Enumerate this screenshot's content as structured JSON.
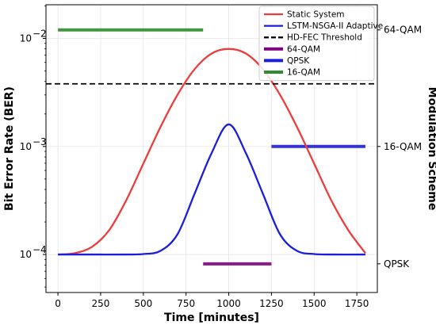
{
  "chart_data": {
    "type": "line",
    "xlabel": "Time [minutes]",
    "ylabel": "Bit Error Rate (BER)",
    "y2label": "Modulation Scheme",
    "x_ticks": [
      0,
      250,
      500,
      750,
      1000,
      1250,
      1500,
      1750
    ],
    "xlim": [
      -70,
      1870
    ],
    "y_scale": "log",
    "y_ticks": [
      {
        "value": 0.0001,
        "base": "10",
        "exp": "−4"
      },
      {
        "value": 0.001,
        "base": "10",
        "exp": "−3"
      },
      {
        "value": 0.01,
        "base": "10",
        "exp": "−2"
      }
    ],
    "ylim": [
      4.45e-05,
      0.0205
    ],
    "y2_ticks": [
      {
        "label": "QPSK",
        "ber": 8.2e-05
      },
      {
        "label": "16-QAM",
        "ber": 0.001
      },
      {
        "label": "64-QAM",
        "ber": 0.012
      }
    ],
    "grid": true,
    "legend_position": "top-right",
    "series": [
      {
        "name": "Static System",
        "color": "#ee3b3b",
        "style": "solid",
        "x": [
          0,
          100,
          200,
          300,
          400,
          500,
          600,
          700,
          800,
          900,
          1000,
          1100,
          1200,
          1300,
          1400,
          1500,
          1600,
          1700,
          1800
        ],
        "y": [
          0.0001,
          0.000103,
          0.000118,
          0.000168,
          0.000318,
          0.000694,
          0.00151,
          0.00301,
          0.00519,
          0.00725,
          0.008,
          0.00725,
          0.00519,
          0.00301,
          0.00151,
          0.000694,
          0.000318,
          0.000168,
          0.000103
        ]
      },
      {
        "name": "LSTM-NSGA-II Adaptive",
        "color": "#1c1cdd",
        "style": "solid",
        "x": [
          0,
          200,
          400,
          500,
          600,
          700,
          800,
          900,
          1000,
          1100,
          1200,
          1300,
          1400,
          1500,
          1600,
          1800
        ],
        "y": [
          0.0001,
          0.0001,
          0.0001,
          0.000101,
          0.000108,
          0.000154,
          0.000365,
          0.000871,
          0.0016,
          0.000871,
          0.000365,
          0.000154,
          0.000108,
          0.000101,
          0.0001,
          0.0001
        ]
      },
      {
        "name": "HD-FEC Threshold",
        "color": "#000000",
        "style": "dashed",
        "x": [
          -70,
          1870
        ],
        "y": [
          0.0038,
          0.0038
        ]
      }
    ],
    "modulation_segments": [
      {
        "name": "64-QAM",
        "color": "#800080",
        "x": [
          850,
          1250
        ],
        "level": "QPSK"
      },
      {
        "name": "QPSK",
        "color": "#1c1cdd",
        "x": [
          1250,
          1800
        ],
        "level": "16-QAM"
      },
      {
        "name": "16-QAM",
        "color": "#2e8b2e",
        "x": [
          0,
          850
        ],
        "level": "64-QAM"
      }
    ]
  }
}
